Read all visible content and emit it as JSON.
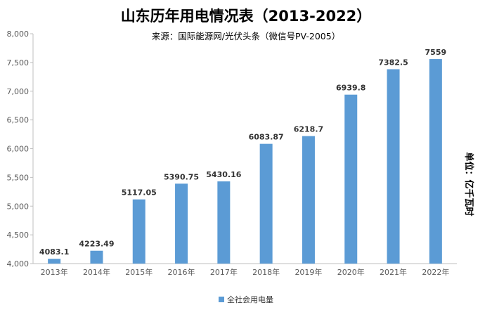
{
  "chart_data": {
    "type": "bar",
    "title": "山东历年用电情况表（2013-2022）",
    "subtitle": "来源：国际能源网/光伏头条（微信号PV-2005）",
    "unit_note": "单位：亿千瓦时",
    "categories": [
      "2013年",
      "2014年",
      "2015年",
      "2016年",
      "2017年",
      "2018年",
      "2019年",
      "2020年",
      "2021年",
      "2022年"
    ],
    "series": [
      {
        "name": "全社会用电量",
        "color": "#5b9bd5",
        "values": [
          4083.1,
          4223.49,
          5117.05,
          5390.75,
          5430.16,
          6083.87,
          6218.7,
          6939.8,
          7382.5,
          7559
        ],
        "labels": [
          "4083.1",
          "4223.49",
          "5117.05",
          "5390.75",
          "5430.16",
          "6083.87",
          "6218.7",
          "6939.8",
          "7382.5",
          "7559"
        ]
      }
    ],
    "ylim": [
      4000,
      8000
    ],
    "yticks": [
      4000,
      4500,
      5000,
      5500,
      6000,
      6500,
      7000,
      7500,
      8000
    ],
    "ytick_labels": [
      "4,000",
      "4,500",
      "5,000",
      "5,500",
      "6,000",
      "6,500",
      "7,000",
      "7,500",
      "8,000"
    ],
    "grid": false,
    "legend_position": "bottom"
  }
}
